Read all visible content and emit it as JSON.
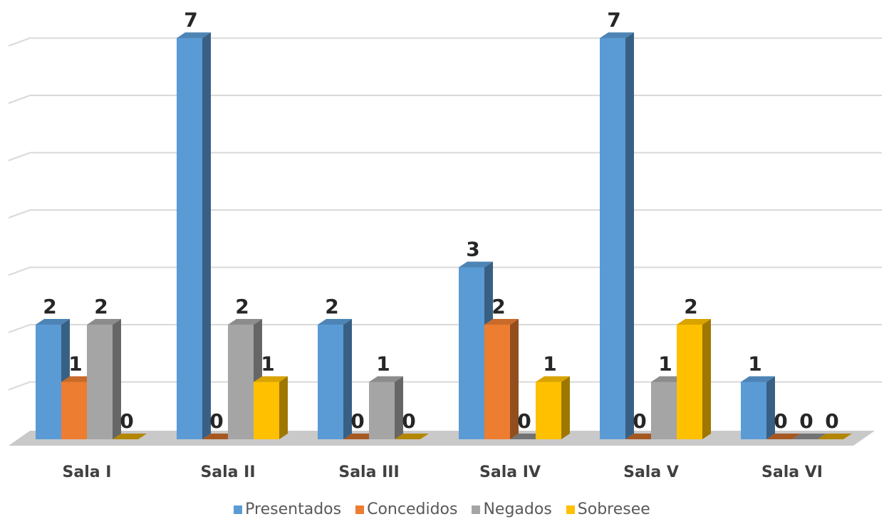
{
  "chart_data": {
    "type": "bar",
    "categories": [
      "Sala I",
      "Sala II",
      "Sala III",
      "Sala IV",
      "Sala V",
      "Sala VI"
    ],
    "series": [
      {
        "name": "Presentados",
        "values": [
          2,
          7,
          2,
          3,
          7,
          1
        ],
        "color": "#5B9BD5"
      },
      {
        "name": "Concedidos",
        "values": [
          1,
          0,
          0,
          2,
          0,
          0
        ],
        "color": "#ED7D31"
      },
      {
        "name": "Negados",
        "values": [
          2,
          2,
          1,
          0,
          1,
          0
        ],
        "color": "#A5A5A5"
      },
      {
        "name": "Sobresee",
        "values": [
          0,
          1,
          0,
          1,
          2,
          0
        ],
        "color": "#FFC000"
      }
    ],
    "title": "",
    "xlabel": "",
    "ylabel": "",
    "ylim": [
      0,
      7
    ],
    "grid": true,
    "legend_position": "bottom",
    "three_d": true
  }
}
